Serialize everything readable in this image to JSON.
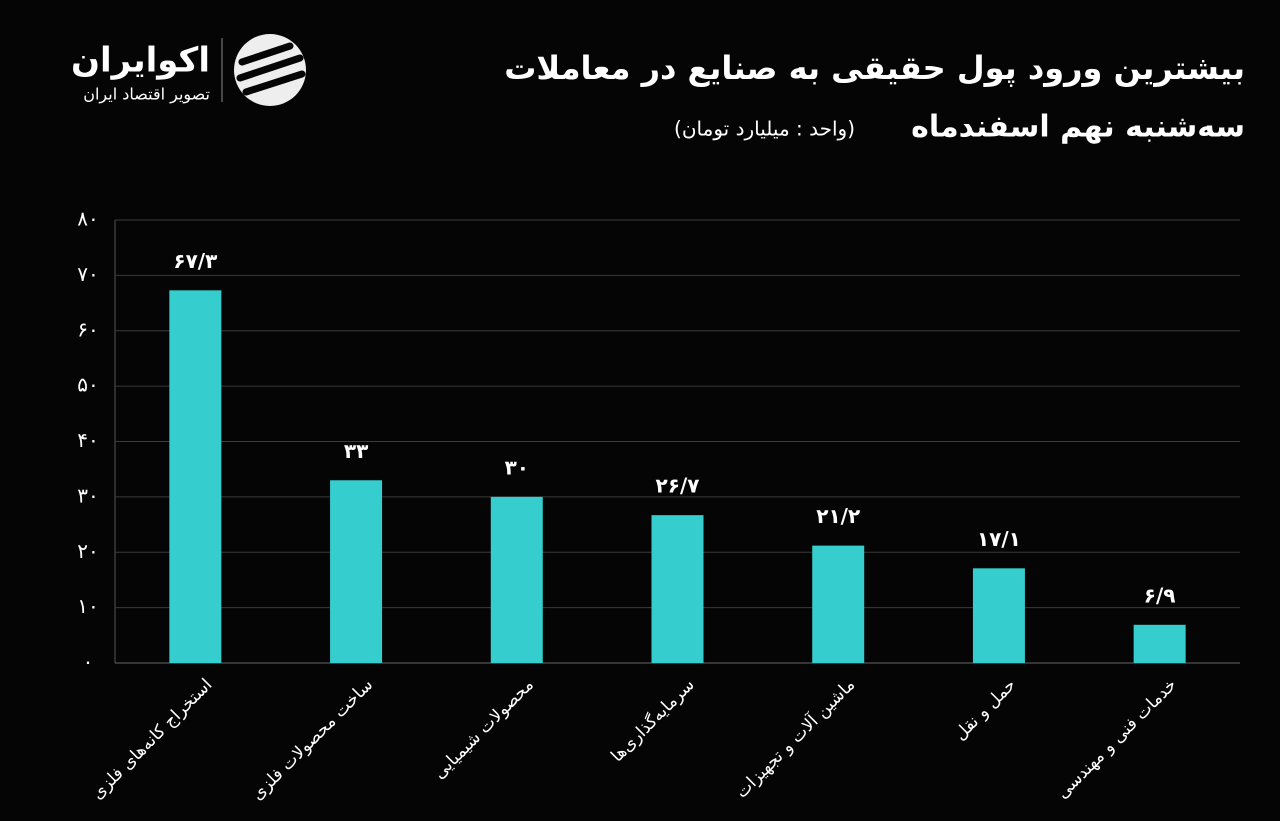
{
  "logo": {
    "name": "اکوایران",
    "tagline": "تصویر اقتصاد ایران"
  },
  "chart_data": {
    "type": "bar",
    "title": "بیشترین ورود پول حقیقی به صنایع در معاملات",
    "subtitle": "سه‌شنبه نهم اسفندماه",
    "unit": "(واحد : میلیارد تومان)",
    "categories": [
      "استخراج کانه‌های فلزی",
      "ساخت محصولات فلزی",
      "محصولات شیمیایی",
      "سرمایه‌گذاری‌ها",
      "ماشین آلات و تجهیزات",
      "حمل و نقل",
      "خدمات فنی و مهندسی"
    ],
    "values": [
      67.3,
      33,
      30,
      26.7,
      21.2,
      17.1,
      6.9
    ],
    "value_labels": [
      "۶۷/۳",
      "۳۳",
      "۳۰",
      "۲۶/۷",
      "۲۱/۲",
      "۱۷/۱",
      "۶/۹"
    ],
    "color": "#35cdcd",
    "ylim": [
      0,
      80
    ],
    "yticks": [
      {
        "value": 0,
        "label": "۰"
      },
      {
        "value": 10,
        "label": "۱۰"
      },
      {
        "value": 20,
        "label": "۲۰"
      },
      {
        "value": 30,
        "label": "۳۰"
      },
      {
        "value": 40,
        "label": "۴۰"
      },
      {
        "value": 50,
        "label": "۵۰"
      },
      {
        "value": 60,
        "label": "۶۰"
      },
      {
        "value": 70,
        "label": "۷۰"
      },
      {
        "value": 80,
        "label": "۸۰"
      }
    ],
    "grid": true
  }
}
